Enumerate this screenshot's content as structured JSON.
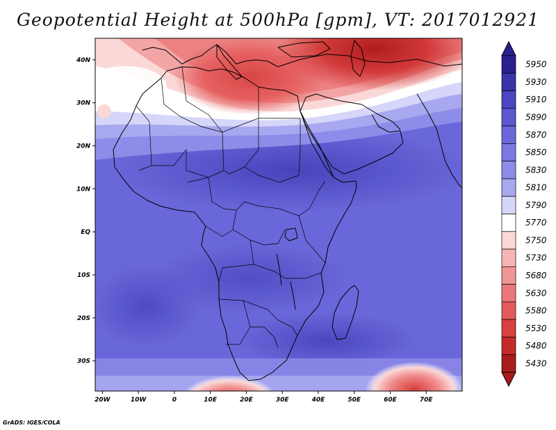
{
  "title": "Geopotential Height at 500hPa [gpm], VT: 2017012921",
  "credit": "GrADS: IGES/COLA",
  "map": {
    "lon_range": [
      -22,
      80
    ],
    "lat_range": [
      -37,
      45
    ],
    "x_ticks": [
      "20W",
      "10W",
      "0",
      "10E",
      "20E",
      "30E",
      "40E",
      "50E",
      "60E",
      "70E"
    ],
    "y_ticks": [
      "40N",
      "30N",
      "20N",
      "10N",
      "EQ",
      "10S",
      "20S",
      "30S"
    ]
  },
  "colorbar": {
    "levels": [
      "5950",
      "5930",
      "5910",
      "5890",
      "5870",
      "5850",
      "5830",
      "5810",
      "5790",
      "5770",
      "5750",
      "5730",
      "5680",
      "5630",
      "5580",
      "5530",
      "5480",
      "5430"
    ],
    "colors": [
      "#2a1f8f",
      "#3a34a8",
      "#4a45c0",
      "#5b57cf",
      "#6b68db",
      "#7c79e3",
      "#8e8ce9",
      "#a8a8f0",
      "#d6d6fa",
      "#ffffff",
      "#fbd8d8",
      "#f6b5b5",
      "#f09696",
      "#ea7878",
      "#e45b5b",
      "#d94040",
      "#c52a2a",
      "#a81c1c"
    ]
  }
}
